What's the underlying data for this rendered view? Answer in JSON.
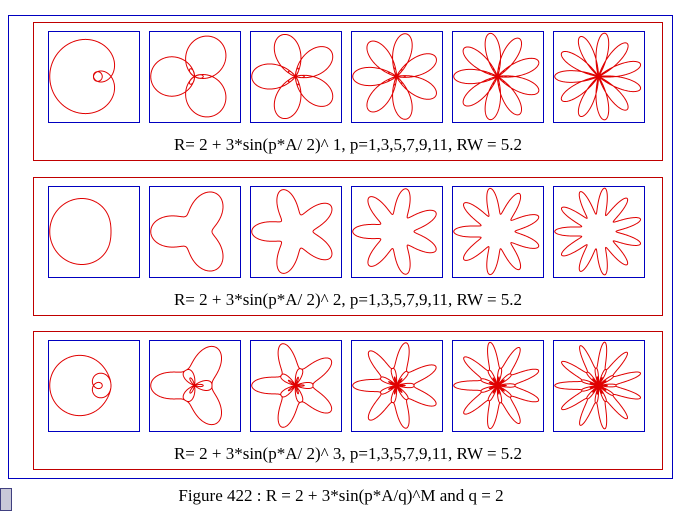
{
  "panels": [
    {
      "caption": "R= 2 + 3*sin(p*A/ 2)^ 1,  p=1,3,5,7,9,11, RW = 5.2",
      "exponent": 1,
      "q": 2,
      "p": [
        1,
        3,
        5,
        7,
        9,
        11
      ],
      "rw": 5.2
    },
    {
      "caption": "R= 2 + 3*sin(p*A/ 2)^ 2,  p=1,3,5,7,9,11, RW = 5.2",
      "exponent": 2,
      "q": 2,
      "p": [
        1,
        3,
        5,
        7,
        9,
        11
      ],
      "rw": 5.2
    },
    {
      "caption": "R= 2 + 3*sin(p*A/ 2)^ 3,  p=1,3,5,7,9,11, RW = 5.2",
      "exponent": 3,
      "q": 2,
      "p": [
        1,
        3,
        5,
        7,
        9,
        11
      ],
      "rw": 5.2
    }
  ],
  "figure_caption": "Figure 422 : R = 2 + 3*sin(p*A/q)^M and q = 2"
}
